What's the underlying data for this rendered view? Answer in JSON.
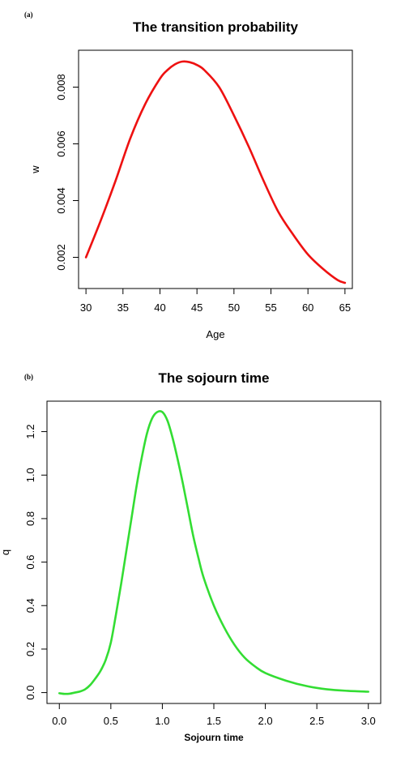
{
  "chart_data": [
    {
      "panel_label": "(a)",
      "type": "line",
      "title": "The transition probability",
      "xlabel": "Age",
      "ylabel": "w",
      "xlim": [
        29,
        66
      ],
      "ylim": [
        0.0009,
        0.0093
      ],
      "xticks": [
        30,
        35,
        40,
        45,
        50,
        55,
        60,
        65
      ],
      "yticks": [
        0.002,
        0.004,
        0.006,
        0.008
      ],
      "xtick_labels": [
        "30",
        "35",
        "40",
        "45",
        "50",
        "55",
        "60",
        "65"
      ],
      "ytick_labels": [
        "0.002",
        "0.004",
        "0.006",
        "0.008"
      ],
      "grid": false,
      "series": [
        {
          "color": "#ee1111",
          "x": [
            30,
            32,
            34,
            36,
            38,
            40,
            41,
            42,
            43,
            44,
            45,
            46,
            48,
            50,
            52,
            54,
            56,
            58,
            60,
            62,
            64,
            65
          ],
          "y": [
            0.002,
            0.0033,
            0.0047,
            0.0062,
            0.0074,
            0.0083,
            0.0086,
            0.0088,
            0.0089,
            0.00888,
            0.00878,
            0.0086,
            0.008,
            0.007,
            0.0059,
            0.0047,
            0.0036,
            0.0028,
            0.0021,
            0.0016,
            0.0012,
            0.0011
          ]
        }
      ]
    },
    {
      "panel_label": "(b)",
      "type": "line",
      "title": "The sojourn time",
      "xlabel": "Sojourn time",
      "ylabel": "q",
      "xlim": [
        -0.12,
        3.12
      ],
      "ylim": [
        -0.05,
        1.34
      ],
      "xticks": [
        0.0,
        0.5,
        1.0,
        1.5,
        2.0,
        2.5,
        3.0
      ],
      "yticks": [
        0.0,
        0.2,
        0.4,
        0.6,
        0.8,
        1.0,
        1.2
      ],
      "xtick_labels": [
        "0.0",
        "0.5",
        "1.0",
        "1.5",
        "2.0",
        "2.5",
        "3.0"
      ],
      "ytick_labels": [
        "0.0",
        "0.2",
        "0.4",
        "0.6",
        "0.8",
        "1.0",
        "1.2"
      ],
      "grid": false,
      "series": [
        {
          "color": "#33dd33",
          "x": [
            0.0,
            0.05,
            0.1,
            0.15,
            0.2,
            0.25,
            0.3,
            0.35,
            0.4,
            0.45,
            0.5,
            0.55,
            0.6,
            0.65,
            0.7,
            0.75,
            0.8,
            0.85,
            0.9,
            0.95,
            1.0,
            1.05,
            1.1,
            1.15,
            1.2,
            1.25,
            1.3,
            1.35,
            1.4,
            1.5,
            1.6,
            1.7,
            1.8,
            1.9,
            2.0,
            2.2,
            2.4,
            2.6,
            2.8,
            3.0
          ],
          "y": [
            -0.003,
            -0.006,
            -0.005,
            0.0,
            0.005,
            0.015,
            0.035,
            0.065,
            0.1,
            0.15,
            0.23,
            0.36,
            0.5,
            0.65,
            0.8,
            0.95,
            1.08,
            1.19,
            1.26,
            1.29,
            1.29,
            1.25,
            1.17,
            1.07,
            0.96,
            0.84,
            0.72,
            0.62,
            0.53,
            0.4,
            0.3,
            0.22,
            0.16,
            0.12,
            0.09,
            0.055,
            0.03,
            0.015,
            0.008,
            0.004
          ]
        }
      ]
    }
  ]
}
